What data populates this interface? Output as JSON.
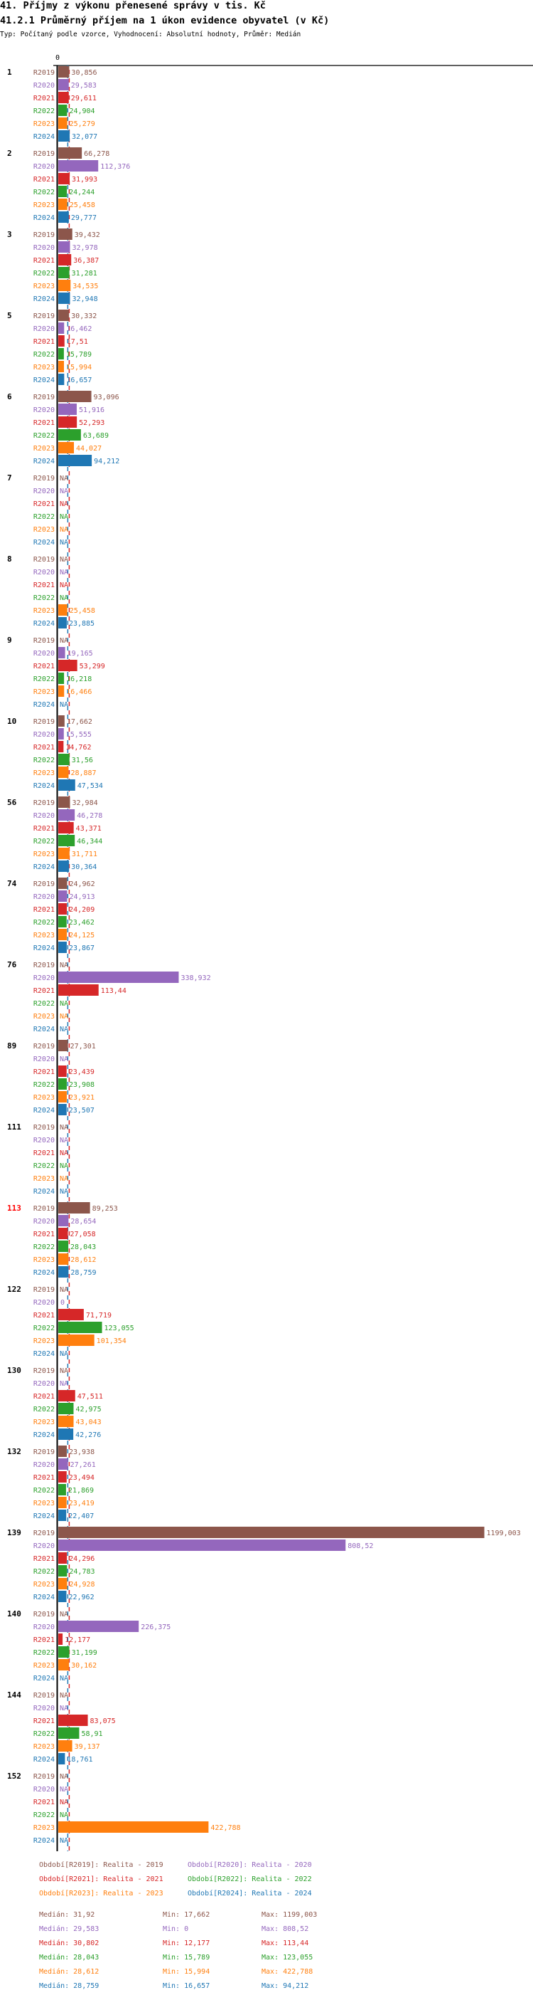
{
  "header": {
    "title": "41. Příjmy z výkonu přenesené správy v tis. Kč",
    "subtitle": "41.2.1 Průměrný příjem na 1 úkon evidence obyvatel (v Kč)",
    "meta": "Typ: Počítaný podle vzorce, Vyhodnocení: Absolutní hodnoty, Průměr: Medián"
  },
  "chart_data": {
    "type": "bar",
    "orientation": "horizontal",
    "axis_zero_label": "0",
    "xlim": [
      0,
      1200
    ],
    "grid": false,
    "series_keys": [
      "R2019",
      "R2020",
      "R2021",
      "R2022",
      "R2023",
      "R2024"
    ],
    "colors": {
      "R2019": "#8c564b",
      "R2020": "#9467bd",
      "R2021": "#d62728",
      "R2022": "#2ca02c",
      "R2023": "#ff7f0e",
      "R2024": "#1f77b4"
    },
    "na_label": "NA",
    "highlight_group": "113",
    "highlight_color": "#ff0000",
    "groups": [
      {
        "label": "1",
        "values": [
          30.856,
          29.583,
          29.611,
          24.904,
          25.279,
          32.077
        ]
      },
      {
        "label": "2",
        "values": [
          66.278,
          112.376,
          31.993,
          24.244,
          25.458,
          29.777
        ]
      },
      {
        "label": "3",
        "values": [
          39.432,
          32.978,
          36.387,
          31.281,
          34.535,
          32.948
        ]
      },
      {
        "label": "5",
        "values": [
          30.332,
          16.462,
          17.51,
          15.789,
          15.994,
          16.657
        ]
      },
      {
        "label": "6",
        "values": [
          93.096,
          51.916,
          52.293,
          63.689,
          44.027,
          94.212
        ]
      },
      {
        "label": "7",
        "values": [
          null,
          null,
          null,
          null,
          null,
          null
        ]
      },
      {
        "label": "8",
        "values": [
          null,
          null,
          null,
          null,
          25.458,
          23.885
        ]
      },
      {
        "label": "9",
        "values": [
          null,
          19.165,
          53.299,
          16.218,
          16.466,
          null
        ]
      },
      {
        "label": "10",
        "values": [
          17.662,
          15.555,
          14.762,
          31.56,
          28.887,
          47.534
        ]
      },
      {
        "label": "56",
        "values": [
          32.984,
          46.278,
          43.371,
          46.344,
          31.711,
          30.364
        ]
      },
      {
        "label": "74",
        "values": [
          24.962,
          24.913,
          24.209,
          23.462,
          24.125,
          23.867
        ]
      },
      {
        "label": "76",
        "values": [
          null,
          338.932,
          113.44,
          null,
          null,
          null
        ]
      },
      {
        "label": "89",
        "values": [
          27.301,
          null,
          23.439,
          23.908,
          23.921,
          23.507
        ]
      },
      {
        "label": "111",
        "values": [
          null,
          null,
          null,
          null,
          null,
          null
        ]
      },
      {
        "label": "113",
        "values": [
          89.253,
          28.654,
          27.058,
          28.043,
          28.612,
          28.759
        ]
      },
      {
        "label": "122",
        "values": [
          null,
          0,
          71.719,
          123.055,
          101.354,
          null
        ]
      },
      {
        "label": "130",
        "values": [
          null,
          null,
          47.511,
          42.975,
          43.043,
          42.276
        ]
      },
      {
        "label": "132",
        "values": [
          23.938,
          27.261,
          23.494,
          21.869,
          23.419,
          22.407
        ]
      },
      {
        "label": "139",
        "values": [
          1199.003,
          808.52,
          24.296,
          24.783,
          24.928,
          22.962
        ]
      },
      {
        "label": "140",
        "values": [
          null,
          226.375,
          12.177,
          31.199,
          30.162,
          null
        ]
      },
      {
        "label": "144",
        "values": [
          null,
          null,
          83.075,
          58.91,
          39.137,
          18.761
        ]
      },
      {
        "label": "152",
        "values": [
          null,
          null,
          null,
          null,
          422.788,
          null
        ]
      }
    ],
    "median_lines": [
      {
        "key": "R2021",
        "value": 30.802
      },
      {
        "key": "R2024",
        "value": 28.759
      }
    ],
    "legend": [
      {
        "key": "R2019",
        "text": "Období[R2019]: Realita - 2019"
      },
      {
        "key": "R2020",
        "text": "Období[R2020]: Realita - 2020"
      },
      {
        "key": "R2021",
        "text": "Období[R2021]: Realita - 2021"
      },
      {
        "key": "R2022",
        "text": "Období[R2022]: Realita - 2022"
      },
      {
        "key": "R2023",
        "text": "Období[R2023]: Realita - 2023"
      },
      {
        "key": "R2024",
        "text": "Období[R2024]: Realita - 2024"
      }
    ],
    "stats": [
      {
        "key": "R2019",
        "median": "Medián: 31,92",
        "min": "Min: 17,662",
        "max": "Max: 1199,003"
      },
      {
        "key": "R2020",
        "median": "Medián: 29,583",
        "min": "Min: 0",
        "max": "Max: 808,52"
      },
      {
        "key": "R2021",
        "median": "Medián: 30,802",
        "min": "Min: 12,177",
        "max": "Max: 113,44"
      },
      {
        "key": "R2022",
        "median": "Medián: 28,043",
        "min": "Min: 15,789",
        "max": "Max: 123,055"
      },
      {
        "key": "R2023",
        "median": "Medián: 28,612",
        "min": "Min: 15,994",
        "max": "Max: 422,788"
      },
      {
        "key": "R2024",
        "median": "Medián: 28,759",
        "min": "Min: 16,657",
        "max": "Max: 94,212"
      }
    ]
  }
}
